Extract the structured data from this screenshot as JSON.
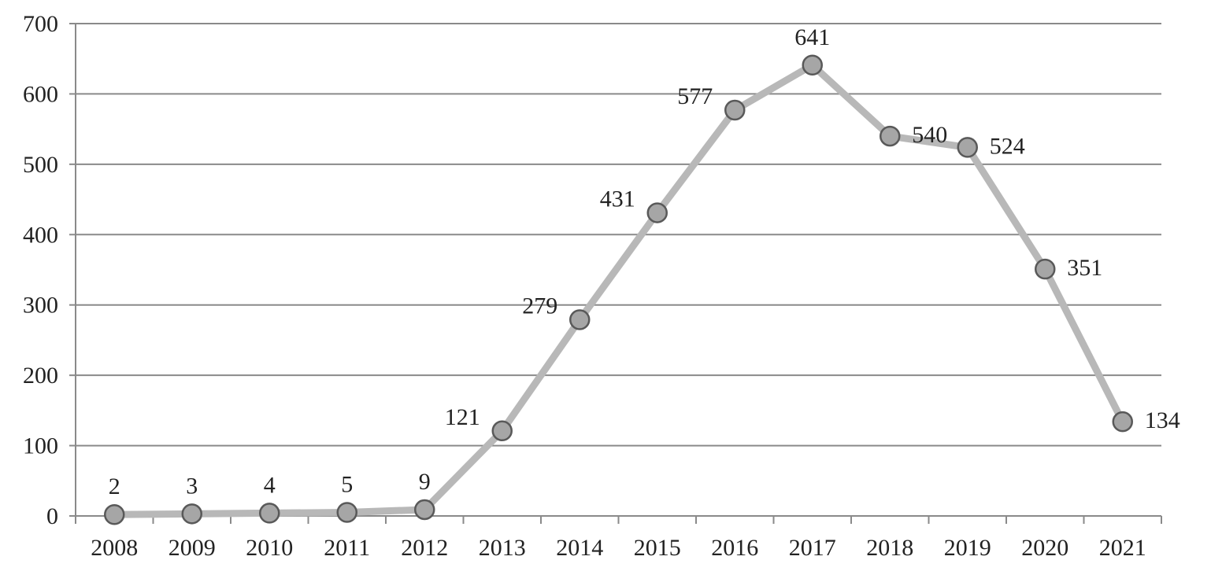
{
  "chart_data": {
    "type": "line",
    "title": "",
    "xlabel": "",
    "ylabel": "",
    "categories": [
      "2008",
      "2009",
      "2010",
      "2011",
      "2012",
      "2013",
      "2014",
      "2015",
      "2016",
      "2017",
      "2018",
      "2019",
      "2020",
      "2021"
    ],
    "series": [
      {
        "values": [
          2,
          3,
          4,
          5,
          9,
          121,
          279,
          431,
          577,
          641,
          540,
          524,
          351,
          134
        ]
      }
    ],
    "data_labels": [
      "2",
      "3",
      "4",
      "5",
      "9",
      "121",
      "279",
      "431",
      "577",
      "641",
      "540",
      "524",
      "351",
      "134"
    ],
    "ylim": [
      0,
      700
    ],
    "y_ticks": [
      0,
      100,
      200,
      300,
      400,
      500,
      600,
      700
    ],
    "y_tick_labels": [
      "0",
      "100",
      "200",
      "300",
      "400",
      "500",
      "600",
      "700"
    ],
    "grid": "horizontal",
    "legend": "none",
    "colors": {
      "line": "#b8b8b8",
      "marker_fill": "#a6a6a6",
      "marker_stroke": "#595959",
      "grid": "#8a8a8a",
      "text": "#222222"
    }
  }
}
